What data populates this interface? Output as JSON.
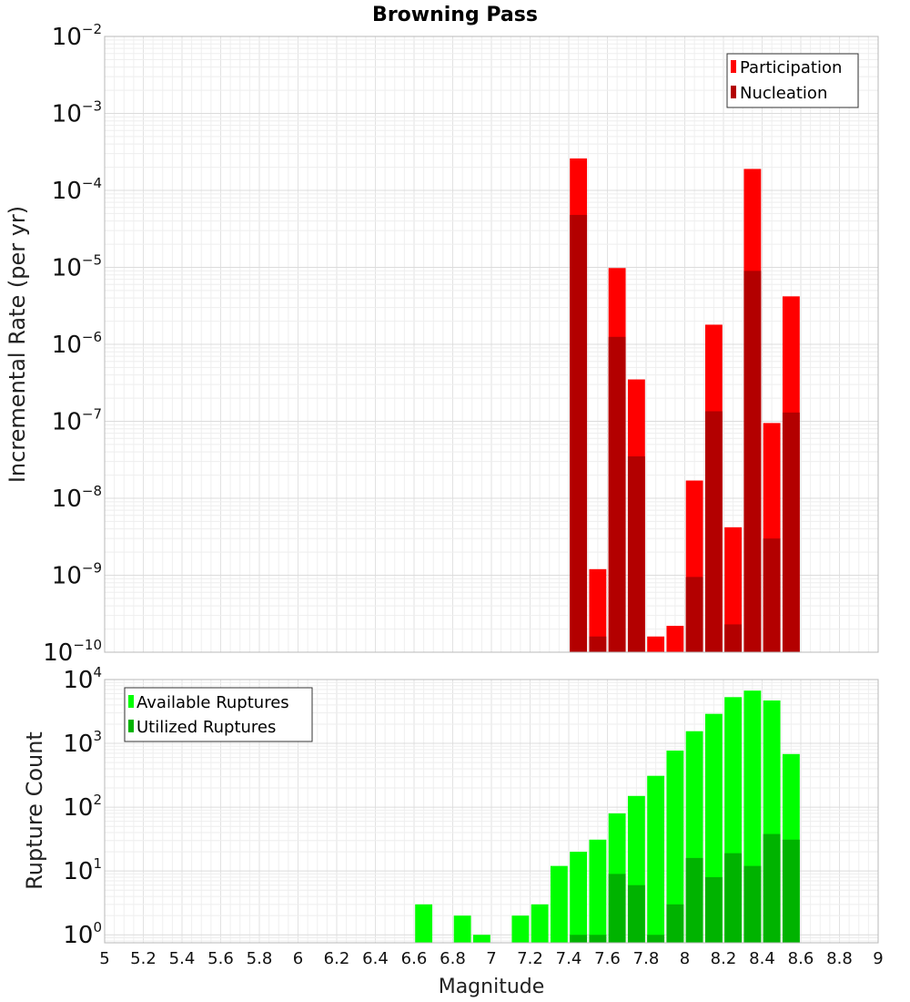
{
  "chart_data": [
    {
      "type": "bar",
      "title": "Browning Pass",
      "xlabel": "",
      "ylabel": "Incremental Rate (per yr)",
      "yscale": "log",
      "xlim": [
        5,
        9
      ],
      "ylim": [
        1e-10,
        0.01
      ],
      "ytick_exponents": [
        -10,
        -9,
        -8,
        -7,
        -6,
        -5,
        -4,
        -3,
        -2
      ],
      "grid": true,
      "legend_position": "top-right",
      "bin_width": 0.1,
      "x": [
        7.45,
        7.55,
        7.65,
        7.75,
        7.85,
        7.95,
        8.05,
        8.15,
        8.25,
        8.35,
        8.45,
        8.55
      ],
      "series": [
        {
          "name": "Participation",
          "color": "#ff0000",
          "values": [
            0.00026,
            1.2e-09,
            9.8e-06,
            3.5e-07,
            1.6e-10,
            2.2e-10,
            1.7e-08,
            1.8e-06,
            4.2e-09,
            0.00019,
            9.5e-08,
            4.2e-06
          ]
        },
        {
          "name": "Nucleation",
          "color": "#b30000",
          "values": [
            4.8e-05,
            1.6e-10,
            1.25e-06,
            3.5e-08,
            null,
            null,
            9.5e-10,
            1.35e-07,
            2.3e-10,
            9e-06,
            3e-09,
            1.3e-07
          ]
        }
      ]
    },
    {
      "type": "bar",
      "title": "",
      "xlabel": "Magnitude",
      "ylabel": "Rupture Count",
      "yscale": "log",
      "xlim": [
        5,
        9
      ],
      "ylim": [
        0.75,
        10000.0
      ],
      "ytick_exponents": [
        0,
        1,
        2,
        3,
        4
      ],
      "xticks": [
        "5",
        "5.2",
        "5.4",
        "5.6",
        "5.8",
        "6",
        "6.2",
        "6.4",
        "6.6",
        "6.8",
        "7",
        "7.2",
        "7.4",
        "7.6",
        "7.8",
        "8",
        "8.2",
        "8.4",
        "8.6",
        "8.8",
        "9"
      ],
      "grid": true,
      "legend_position": "top-left",
      "bin_width": 0.1,
      "x": [
        6.65,
        6.85,
        6.95,
        7.15,
        7.25,
        7.35,
        7.45,
        7.55,
        7.65,
        7.75,
        7.85,
        7.95,
        8.05,
        8.15,
        8.25,
        8.35,
        8.45,
        8.55
      ],
      "series": [
        {
          "name": "Available Ruptures",
          "color": "#00ff00",
          "values": [
            3,
            2,
            1,
            2,
            3,
            12,
            20,
            31,
            80,
            150,
            310,
            770,
            1550,
            2900,
            5300,
            6700,
            4700,
            680
          ]
        },
        {
          "name": "Utilized Ruptures",
          "color": "#00b300",
          "values": [
            null,
            null,
            null,
            null,
            null,
            null,
            1,
            1,
            9,
            6,
            1,
            3,
            16,
            8,
            19,
            12,
            38,
            31
          ]
        }
      ]
    }
  ]
}
